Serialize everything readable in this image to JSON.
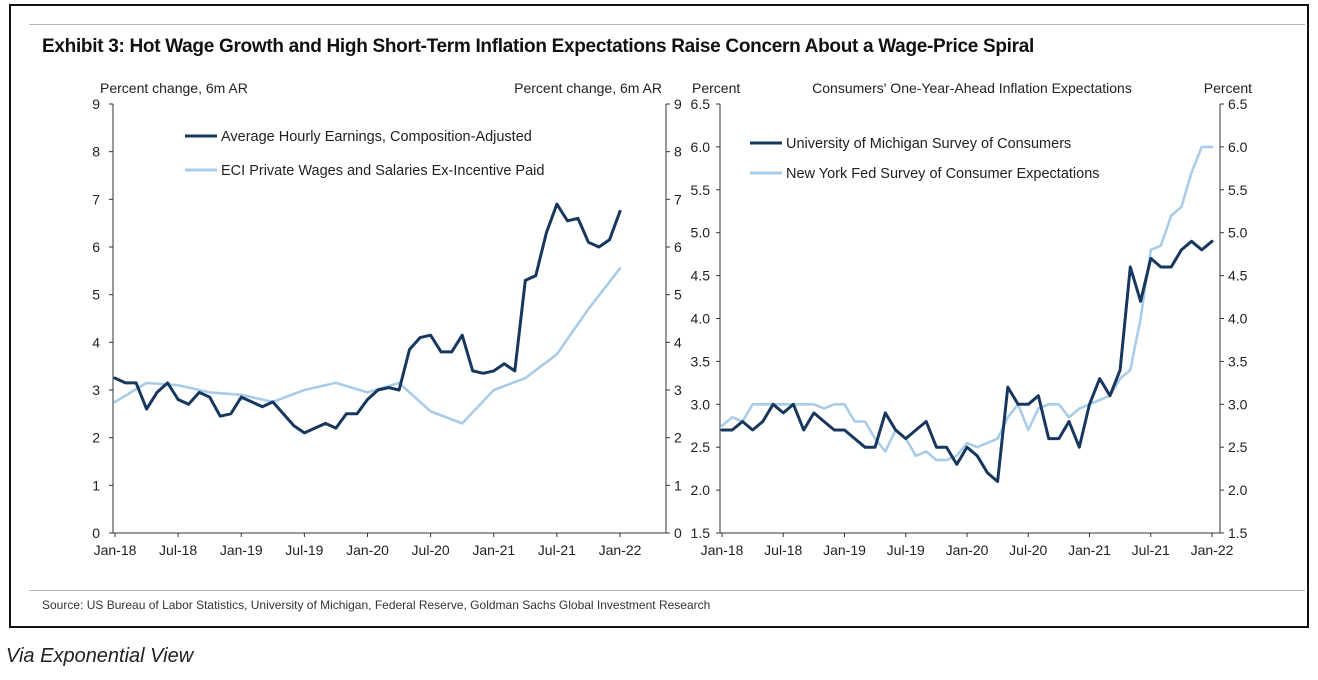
{
  "title": "Exhibit 3: Hot Wage Growth and High Short-Term Inflation Expectations Raise Concern About a Wage-Price Spiral",
  "source": "Source: US Bureau of Labor Statistics, University of Michigan, Federal Reserve, Goldman Sachs Global Investment Research",
  "via": "Via Exponential View",
  "colors": {
    "dark": "#17375e",
    "light": "#a9cce8"
  },
  "chart_data": [
    {
      "type": "line",
      "title": "",
      "ylabel_left": "Percent change, 6m AR",
      "ylabel_right": "Percent change, 6m AR",
      "ylim": [
        0,
        9
      ],
      "yticks": [
        "0",
        "1",
        "2",
        "3",
        "4",
        "5",
        "6",
        "7",
        "8",
        "9"
      ],
      "xlim": [
        2018.0,
        2022.0
      ],
      "xticks": [
        {
          "label": "Jan-18",
          "x": 2018.0
        },
        {
          "label": "Jul-18",
          "x": 2018.5
        },
        {
          "label": "Jan-19",
          "x": 2019.0
        },
        {
          "label": "Jul-19",
          "x": 2019.5
        },
        {
          "label": "Jan-20",
          "x": 2020.0
        },
        {
          "label": "Jul-20",
          "x": 2020.5
        },
        {
          "label": "Jan-21",
          "x": 2021.0
        },
        {
          "label": "Jul-21",
          "x": 2021.5
        },
        {
          "label": "Jan-22",
          "x": 2022.0
        }
      ],
      "legend_position": "top-left",
      "series": [
        {
          "name": "Average Hourly Earnings, Composition-Adjusted",
          "color": "dark",
          "x": [
            2018.0,
            2018.083,
            2018.167,
            2018.25,
            2018.333,
            2018.417,
            2018.5,
            2018.583,
            2018.667,
            2018.75,
            2018.833,
            2018.917,
            2019.0,
            2019.083,
            2019.167,
            2019.25,
            2019.333,
            2019.417,
            2019.5,
            2019.583,
            2019.667,
            2019.75,
            2019.833,
            2019.917,
            2020.0,
            2020.083,
            2020.167,
            2020.25,
            2020.333,
            2020.417,
            2020.5,
            2020.583,
            2020.667,
            2020.75,
            2020.833,
            2020.917,
            2021.0,
            2021.083,
            2021.167,
            2021.25,
            2021.333,
            2021.417,
            2021.5,
            2021.583,
            2021.667,
            2021.75,
            2021.833,
            2021.917,
            2022.0
          ],
          "y": [
            3.25,
            3.15,
            3.15,
            2.6,
            2.95,
            3.15,
            2.8,
            2.7,
            2.95,
            2.85,
            2.45,
            2.5,
            2.85,
            2.75,
            2.65,
            2.75,
            2.5,
            2.25,
            2.1,
            2.2,
            2.3,
            2.2,
            2.5,
            2.5,
            2.8,
            3.0,
            3.05,
            3.0,
            3.85,
            4.1,
            4.15,
            3.8,
            3.8,
            4.15,
            3.4,
            3.35,
            3.4,
            3.55,
            3.4,
            5.3,
            5.4,
            6.3,
            6.9,
            6.55,
            6.6,
            6.1,
            6.0,
            6.15,
            6.75
          ]
        },
        {
          "name": "ECI Private Wages and Salaries Ex-Incentive Paid",
          "color": "light",
          "x": [
            2018.0,
            2018.25,
            2018.5,
            2018.75,
            2019.0,
            2019.25,
            2019.5,
            2019.75,
            2020.0,
            2020.25,
            2020.5,
            2020.75,
            2021.0,
            2021.25,
            2021.5,
            2021.75,
            2022.0
          ],
          "y": [
            2.75,
            3.15,
            3.1,
            2.95,
            2.9,
            2.75,
            3.0,
            3.15,
            2.95,
            3.15,
            2.55,
            2.3,
            3.0,
            3.25,
            3.75,
            4.7,
            5.55
          ]
        }
      ]
    },
    {
      "type": "line",
      "title": "Consumers' One-Year-Ahead Inflation Expectations",
      "ylabel_left": "Percent",
      "ylabel_right": "Percent",
      "ylim": [
        1.5,
        6.5
      ],
      "yticks": [
        "1.5",
        "2.0",
        "2.5",
        "3.0",
        "3.5",
        "4.0",
        "4.5",
        "5.0",
        "5.5",
        "6.0",
        "6.5"
      ],
      "xlim": [
        2018.0,
        2022.0
      ],
      "xticks": [
        {
          "label": "Jan-18",
          "x": 2018.0
        },
        {
          "label": "Jul-18",
          "x": 2018.5
        },
        {
          "label": "Jan-19",
          "x": 2019.0
        },
        {
          "label": "Jul-19",
          "x": 2019.5
        },
        {
          "label": "Jan-20",
          "x": 2020.0
        },
        {
          "label": "Jul-20",
          "x": 2020.5
        },
        {
          "label": "Jan-21",
          "x": 2021.0
        },
        {
          "label": "Jul-21",
          "x": 2021.5
        },
        {
          "label": "Jan-22",
          "x": 2022.0
        }
      ],
      "legend_position": "top-left",
      "series": [
        {
          "name": "University of Michigan Survey of Consumers",
          "color": "dark",
          "x": [
            2018.0,
            2018.083,
            2018.167,
            2018.25,
            2018.333,
            2018.417,
            2018.5,
            2018.583,
            2018.667,
            2018.75,
            2018.833,
            2018.917,
            2019.0,
            2019.083,
            2019.167,
            2019.25,
            2019.333,
            2019.417,
            2019.5,
            2019.583,
            2019.667,
            2019.75,
            2019.833,
            2019.917,
            2020.0,
            2020.083,
            2020.167,
            2020.25,
            2020.333,
            2020.417,
            2020.5,
            2020.583,
            2020.667,
            2020.75,
            2020.833,
            2020.917,
            2021.0,
            2021.083,
            2021.167,
            2021.25,
            2021.333,
            2021.417,
            2021.5,
            2021.583,
            2021.667,
            2021.75,
            2021.833,
            2021.917,
            2022.0
          ],
          "y": [
            2.7,
            2.7,
            2.8,
            2.7,
            2.8,
            3.0,
            2.9,
            3.0,
            2.7,
            2.9,
            2.8,
            2.7,
            2.7,
            2.6,
            2.5,
            2.5,
            2.9,
            2.7,
            2.6,
            2.7,
            2.8,
            2.5,
            2.5,
            2.3,
            2.5,
            2.4,
            2.2,
            2.1,
            3.2,
            3.0,
            3.0,
            3.1,
            2.6,
            2.6,
            2.8,
            2.5,
            3.0,
            3.3,
            3.1,
            3.4,
            4.6,
            4.2,
            4.7,
            4.6,
            4.6,
            4.8,
            4.9,
            4.8,
            4.9
          ]
        },
        {
          "name": "New York Fed Survey of Consumer Expectations",
          "color": "light",
          "x": [
            2018.0,
            2018.083,
            2018.167,
            2018.25,
            2018.333,
            2018.417,
            2018.5,
            2018.583,
            2018.667,
            2018.75,
            2018.833,
            2018.917,
            2019.0,
            2019.083,
            2019.167,
            2019.25,
            2019.333,
            2019.417,
            2019.5,
            2019.583,
            2019.667,
            2019.75,
            2019.833,
            2019.917,
            2020.0,
            2020.083,
            2020.167,
            2020.25,
            2020.333,
            2020.417,
            2020.5,
            2020.583,
            2020.667,
            2020.75,
            2020.833,
            2020.917,
            2021.0,
            2021.083,
            2021.167,
            2021.25,
            2021.333,
            2021.417,
            2021.5,
            2021.583,
            2021.667,
            2021.75,
            2021.833,
            2021.917,
            2022.0
          ],
          "y": [
            2.75,
            2.85,
            2.8,
            3.0,
            3.0,
            3.0,
            3.0,
            3.0,
            3.0,
            3.0,
            2.95,
            3.0,
            3.0,
            2.8,
            2.8,
            2.6,
            2.45,
            2.7,
            2.6,
            2.4,
            2.45,
            2.35,
            2.35,
            2.4,
            2.55,
            2.5,
            2.55,
            2.6,
            2.85,
            3.0,
            2.7,
            2.95,
            3.0,
            3.0,
            2.85,
            2.95,
            3.0,
            3.05,
            3.1,
            3.3,
            3.4,
            4.0,
            4.8,
            4.85,
            5.2,
            5.3,
            5.7,
            6.0,
            6.0
          ]
        }
      ]
    }
  ]
}
